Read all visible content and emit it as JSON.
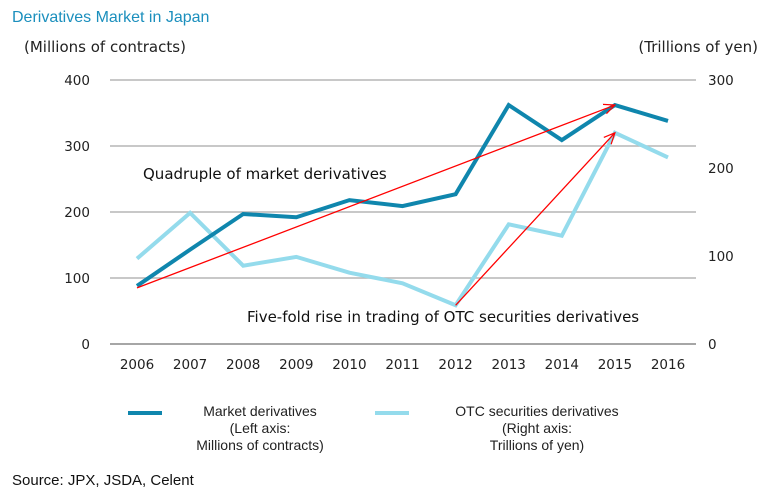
{
  "chart_data": {
    "type": "line",
    "title": "Derivatives Market in Japan",
    "categories": [
      "2006",
      "2007",
      "2008",
      "2009",
      "2010",
      "2011",
      "2012",
      "2013",
      "2014",
      "2015",
      "2016"
    ],
    "left_axis": {
      "label": "(Millions of contracts)",
      "ylim": [
        0,
        400
      ],
      "ticks": [
        "0",
        "100",
        "200",
        "300",
        "400"
      ]
    },
    "right_axis": {
      "label": "(Trillions of yen)",
      "ylim": [
        0,
        300
      ],
      "ticks": [
        "0",
        "100",
        "200",
        "300"
      ]
    },
    "series": [
      {
        "name": "Market derivatives",
        "axis": "left",
        "color": "#0f86ad",
        "values": [
          88,
          143,
          197,
          192,
          218,
          209,
          227,
          362,
          309,
          362,
          338
        ]
      },
      {
        "name": "OTC securities derivatives",
        "axis": "right",
        "color": "#94dbec",
        "values": [
          97,
          149,
          89,
          99,
          81,
          69,
          44,
          136,
          123,
          240,
          212
        ]
      }
    ],
    "annotations": [
      {
        "text": "Quadruple of market derivatives",
        "arrow_from": {
          "x": "2006",
          "axis": "left",
          "y": 85
        },
        "arrow_to": {
          "x": "2015",
          "axis": "left",
          "y": 362
        },
        "color": "#ff0000"
      },
      {
        "text": "Five-fold rise in trading of OTC securities derivatives",
        "arrow_from": {
          "x": "2012",
          "axis": "right",
          "y": 44
        },
        "arrow_to": {
          "x": "2015",
          "axis": "right",
          "y": 240
        },
        "color": "#ff0000"
      }
    ],
    "legend": [
      {
        "label_lines": [
          "Market  derivatives",
          "(Left axis:",
          "Millions of contracts)"
        ],
        "color": "#0f86ad"
      },
      {
        "label_lines": [
          "OTC securities derivatives",
          "(Right axis:",
          "Trillions of yen)"
        ],
        "color": "#94dbec"
      }
    ],
    "legend_position": "bottom",
    "grid": true,
    "source": "Source: JPX, JSDA, Celent"
  }
}
